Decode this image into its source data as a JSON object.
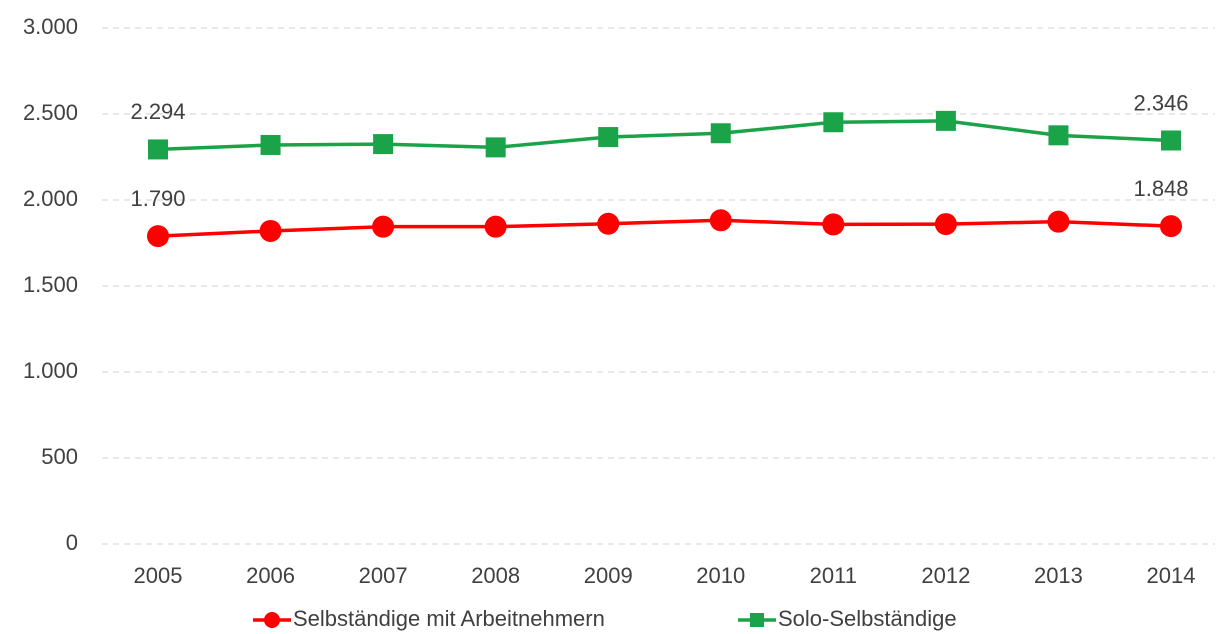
{
  "chart_data": {
    "type": "line",
    "categories": [
      "2005",
      "2006",
      "2007",
      "2008",
      "2009",
      "2010",
      "2011",
      "2012",
      "2013",
      "2014"
    ],
    "series": [
      {
        "name": "Selbständige mit Arbeitnehmern",
        "color": "#ff0000",
        "marker": "circle",
        "values": [
          1790,
          1820,
          1845,
          1845,
          1862,
          1882,
          1858,
          1860,
          1874,
          1848
        ],
        "value_labels": [
          "1.790",
          null,
          null,
          null,
          null,
          null,
          null,
          null,
          null,
          "1.848"
        ]
      },
      {
        "name": "Solo-Selbständige",
        "color": "#1ba34a",
        "marker": "square",
        "values": [
          2294,
          2320,
          2325,
          2306,
          2366,
          2388,
          2452,
          2460,
          2376,
          2346
        ],
        "value_labels": [
          "2.294",
          null,
          null,
          null,
          null,
          null,
          null,
          null,
          null,
          "2.346"
        ]
      }
    ],
    "ylim": [
      0,
      3000
    ],
    "yticks": [
      0,
      500,
      {
        "value": 1000,
        "label": "1.000"
      },
      {
        "value": 1500,
        "label": "1.500"
      },
      {
        "value": 2000,
        "label": "2.000"
      },
      {
        "value": 2500,
        "label": "2.500"
      },
      {
        "value": 3000,
        "label": "3.000"
      }
    ],
    "grid": true,
    "legend": "bottom"
  }
}
